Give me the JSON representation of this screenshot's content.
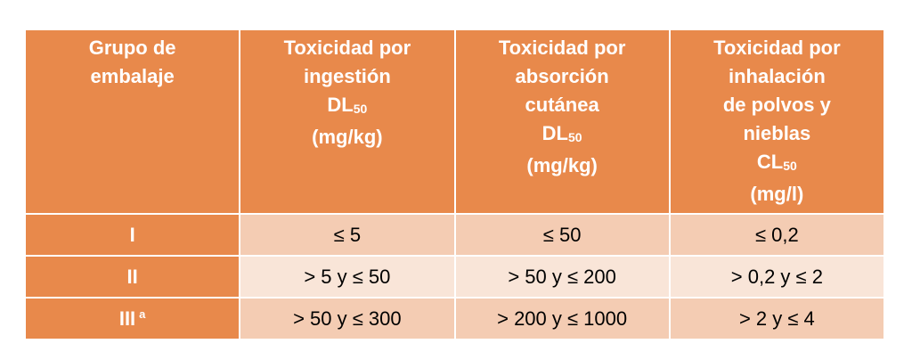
{
  "table": {
    "header": [
      {
        "lines": [
          "Grupo de",
          "embalaje"
        ]
      },
      {
        "lines": [
          "Toxicidad por",
          "ingestión",
          {
            "text": "DL",
            "sub": "50"
          },
          "(mg/kg)"
        ]
      },
      {
        "lines": [
          "Toxicidad por",
          "absorción",
          "cutánea",
          {
            "text": "DL",
            "sub": "50"
          },
          "(mg/kg)"
        ]
      },
      {
        "lines": [
          "Toxicidad por",
          "inhalación",
          "de polvos y",
          "nieblas",
          {
            "text": "CL",
            "sub": "50"
          },
          "(mg/l)"
        ]
      }
    ],
    "rows": [
      [
        {
          "text": "I"
        },
        "≤ 5",
        "≤ 50",
        "≤ 0,2"
      ],
      [
        {
          "text": "II"
        },
        "> 5 y ≤ 50",
        "> 50 y ≤ 200",
        "> 0,2 y ≤ 2"
      ],
      [
        {
          "text": "III",
          "sup": "a"
        },
        "> 50 y ≤ 300",
        "> 200 y ≤ 1000",
        "> 2 y ≤ 4"
      ]
    ]
  }
}
